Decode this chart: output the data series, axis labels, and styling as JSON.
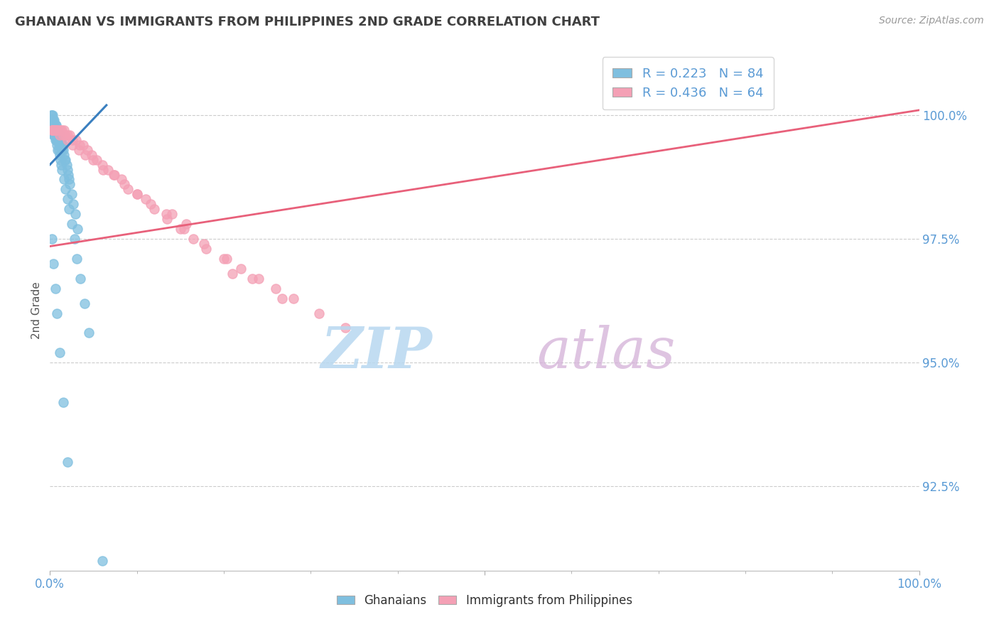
{
  "title": "GHANAIAN VS IMMIGRANTS FROM PHILIPPINES 2ND GRADE CORRELATION CHART",
  "source": "Source: ZipAtlas.com",
  "ylabel": "2nd Grade",
  "y_tick_labels": [
    "92.5%",
    "95.0%",
    "97.5%",
    "100.0%"
  ],
  "y_tick_values": [
    0.925,
    0.95,
    0.975,
    1.0
  ],
  "xlim": [
    0.0,
    1.0
  ],
  "ylim": [
    0.908,
    1.013
  ],
  "legend_blue_label": "R = 0.223   N = 84",
  "legend_pink_label": "R = 0.436   N = 64",
  "blue_color": "#7fbfdf",
  "pink_color": "#f4a0b5",
  "blue_line_color": "#3a7fbf",
  "pink_line_color": "#e8607a",
  "blue_R": 0.223,
  "pink_R": 0.436,
  "blue_points_x": [
    0.001,
    0.001,
    0.002,
    0.002,
    0.002,
    0.003,
    0.003,
    0.003,
    0.003,
    0.004,
    0.004,
    0.004,
    0.005,
    0.005,
    0.005,
    0.005,
    0.006,
    0.006,
    0.006,
    0.007,
    0.007,
    0.007,
    0.008,
    0.008,
    0.008,
    0.009,
    0.009,
    0.01,
    0.01,
    0.01,
    0.011,
    0.011,
    0.012,
    0.012,
    0.013,
    0.013,
    0.014,
    0.014,
    0.015,
    0.015,
    0.016,
    0.017,
    0.018,
    0.019,
    0.02,
    0.021,
    0.022,
    0.023,
    0.025,
    0.027,
    0.029,
    0.032,
    0.001,
    0.002,
    0.003,
    0.004,
    0.005,
    0.006,
    0.007,
    0.008,
    0.009,
    0.01,
    0.011,
    0.012,
    0.013,
    0.014,
    0.016,
    0.018,
    0.02,
    0.022,
    0.025,
    0.028,
    0.031,
    0.035,
    0.04,
    0.045,
    0.002,
    0.004,
    0.006,
    0.008,
    0.011,
    0.015,
    0.02,
    0.06
  ],
  "blue_points_y": [
    1.0,
    0.999,
    1.0,
    0.999,
    0.998,
    1.0,
    0.999,
    0.998,
    0.997,
    0.999,
    0.998,
    0.997,
    0.999,
    0.998,
    0.997,
    0.996,
    0.998,
    0.997,
    0.996,
    0.998,
    0.997,
    0.996,
    0.997,
    0.996,
    0.995,
    0.997,
    0.996,
    0.996,
    0.995,
    0.994,
    0.996,
    0.995,
    0.995,
    0.994,
    0.995,
    0.994,
    0.994,
    0.993,
    0.994,
    0.993,
    0.992,
    0.991,
    0.991,
    0.99,
    0.989,
    0.988,
    0.987,
    0.986,
    0.984,
    0.982,
    0.98,
    0.977,
    0.998,
    0.997,
    0.997,
    0.996,
    0.996,
    0.995,
    0.995,
    0.994,
    0.993,
    0.993,
    0.992,
    0.991,
    0.99,
    0.989,
    0.987,
    0.985,
    0.983,
    0.981,
    0.978,
    0.975,
    0.971,
    0.967,
    0.962,
    0.956,
    0.975,
    0.97,
    0.965,
    0.96,
    0.952,
    0.942,
    0.93,
    0.91
  ],
  "pink_points_x": [
    0.002,
    0.003,
    0.004,
    0.005,
    0.006,
    0.007,
    0.008,
    0.01,
    0.012,
    0.014,
    0.016,
    0.018,
    0.02,
    0.023,
    0.026,
    0.03,
    0.034,
    0.038,
    0.043,
    0.048,
    0.054,
    0.06,
    0.067,
    0.074,
    0.082,
    0.09,
    0.1,
    0.11,
    0.12,
    0.135,
    0.15,
    0.165,
    0.18,
    0.2,
    0.22,
    0.24,
    0.26,
    0.28,
    0.31,
    0.34,
    0.003,
    0.005,
    0.008,
    0.011,
    0.015,
    0.02,
    0.026,
    0.033,
    0.041,
    0.05,
    0.061,
    0.073,
    0.086,
    0.1,
    0.116,
    0.134,
    0.154,
    0.177,
    0.203,
    0.233,
    0.267,
    0.157,
    0.21,
    0.14
  ],
  "pink_points_y": [
    0.997,
    0.997,
    0.997,
    0.997,
    0.997,
    0.997,
    0.997,
    0.997,
    0.997,
    0.997,
    0.997,
    0.996,
    0.996,
    0.996,
    0.995,
    0.995,
    0.994,
    0.994,
    0.993,
    0.992,
    0.991,
    0.99,
    0.989,
    0.988,
    0.987,
    0.985,
    0.984,
    0.983,
    0.981,
    0.979,
    0.977,
    0.975,
    0.973,
    0.971,
    0.969,
    0.967,
    0.965,
    0.963,
    0.96,
    0.957,
    0.997,
    0.997,
    0.997,
    0.996,
    0.996,
    0.995,
    0.994,
    0.993,
    0.992,
    0.991,
    0.989,
    0.988,
    0.986,
    0.984,
    0.982,
    0.98,
    0.977,
    0.974,
    0.971,
    0.967,
    0.963,
    0.978,
    0.968,
    0.98
  ],
  "blue_line_x": [
    0.0,
    0.065
  ],
  "blue_line_y": [
    0.99,
    1.002
  ],
  "pink_line_x": [
    0.0,
    1.0
  ],
  "pink_line_y": [
    0.9735,
    1.001
  ]
}
